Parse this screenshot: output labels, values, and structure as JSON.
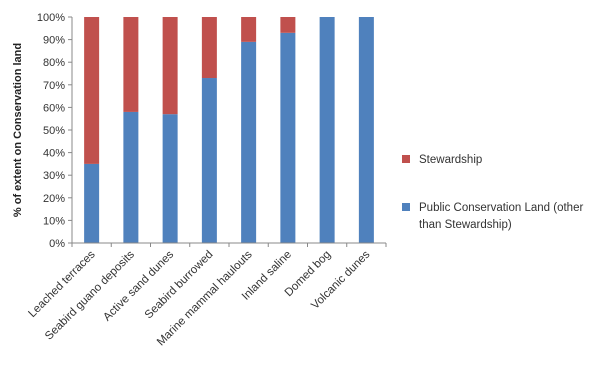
{
  "chart_data": {
    "type": "bar",
    "stacked": true,
    "categories": [
      "Leached terraces",
      "Seabird guano deposits",
      "Active sand dunes",
      "Seabird burrowed",
      "Marine mammal haulouts",
      "Inland saline",
      "Domed bog",
      "Volcanic dunes"
    ],
    "series": [
      {
        "name": "Public Conservation Land (other than Stewardship)",
        "color": "#4F81BD",
        "values": [
          35,
          58,
          57,
          73,
          89,
          93,
          100,
          100
        ]
      },
      {
        "name": "Stewardship",
        "color": "#C0504D",
        "values": [
          65,
          42,
          43,
          27,
          11,
          7,
          0,
          0
        ]
      }
    ],
    "ylabel": "% of extent on Conservation land",
    "xlabel": "",
    "title": "",
    "ylim": [
      0,
      100
    ],
    "yticks": [
      "0%",
      "10%",
      "20%",
      "30%",
      "40%",
      "50%",
      "60%",
      "70%",
      "80%",
      "90%",
      "100%"
    ],
    "legend": {
      "position": "right",
      "items": [
        {
          "label": "Stewardship",
          "color": "#C0504D"
        },
        {
          "label_lines": [
            "Public Conservation Land (other",
            "than Stewardship)"
          ],
          "color": "#4F81BD"
        }
      ]
    },
    "grid": false
  }
}
